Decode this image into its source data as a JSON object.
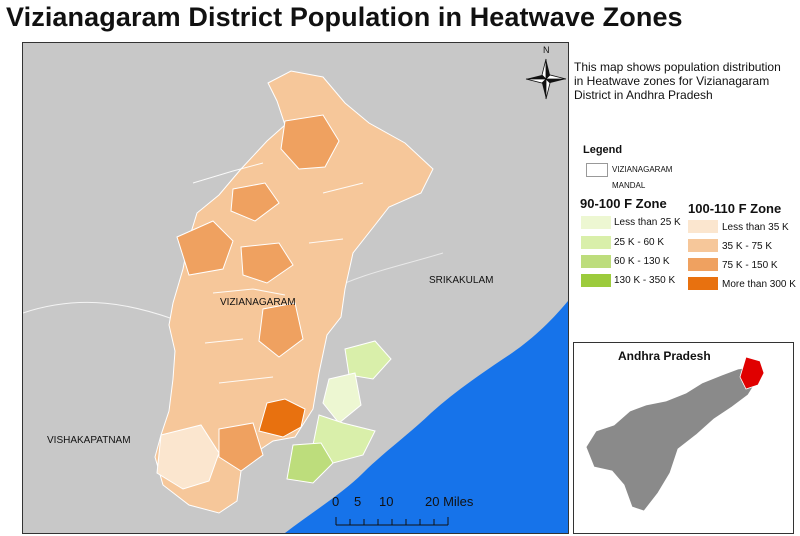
{
  "title": "Vizianagaram District Population in Heatwave Zones",
  "description": [
    "This map shows population distribution",
    "in Heatwave zones for Vizianagaram",
    "District in Andhra Pradesh"
  ],
  "north_arrow": "N",
  "map_labels": {
    "vizianagaram": "VIZIANAGARAM",
    "srikakulam": "SRIKAKULAM",
    "vishakapatnam": "VISHAKAPATNAM"
  },
  "scale_bar": {
    "labels": [
      "0",
      "5",
      "10",
      "20 Miles"
    ]
  },
  "legend": {
    "title": "Legend",
    "boundary_label_1": "VIZIANAGARAM",
    "boundary_label_2": "MANDAL",
    "zone_a": {
      "title": "90-100 F Zone",
      "classes": [
        {
          "label": "Less than 25 K",
          "color": "#edf7d2"
        },
        {
          "label": "25 K - 60 K",
          "color": "#d9efaa"
        },
        {
          "label": "60 K - 130 K",
          "color": "#bddd7c"
        },
        {
          "label": "130 K - 350 K",
          "color": "#9ccb3c"
        }
      ]
    },
    "zone_b": {
      "title": "100-110 F Zone",
      "classes": [
        {
          "label": "Less than 35 K",
          "color": "#fbe6cf"
        },
        {
          "label": "35 K - 75 K",
          "color": "#f6c79a"
        },
        {
          "label": "75 K - 150 K",
          "color": "#efa160"
        },
        {
          "label": "More than 300 K",
          "color": "#e8710f"
        }
      ]
    }
  },
  "inset": {
    "title": "Andhra Pradesh",
    "land_color": "#8a8a8a",
    "highlight_color": "#e00000"
  },
  "colors": {
    "sea": "#1673ea",
    "land": "#c8c8c8",
    "boundary": "#ffffff"
  }
}
